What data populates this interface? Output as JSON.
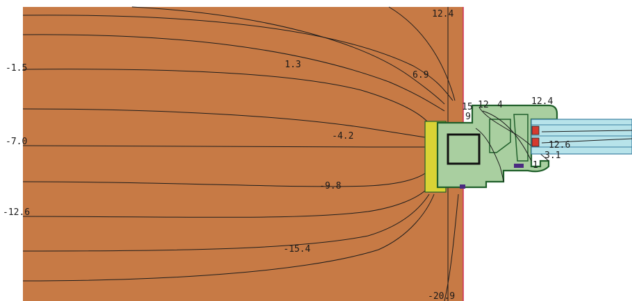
{
  "diagram": {
    "colors": {
      "wall": "#c77a45",
      "wall_edge": "#8a4d22",
      "isotherm": "#1c1c1c",
      "frame": "#a9cfa0",
      "frame_edge": "#1f5f2a",
      "insulation": "#d9d335",
      "glazing": "#b7e3ea",
      "glazing_edge": "#3a7fa0",
      "seal": "#d43a2f",
      "interior_edge": "#d0305a"
    },
    "isotherm_labels": [
      {
        "id": "iso-1",
        "text": "12.4"
      },
      {
        "id": "iso-2",
        "text": "-1.5"
      },
      {
        "id": "iso-3",
        "text": "1.3"
      },
      {
        "id": "iso-4",
        "text": "6.9"
      },
      {
        "id": "iso-5",
        "text": "15"
      },
      {
        "id": "iso-6",
        "text": "9"
      },
      {
        "id": "iso-7",
        "text": "12"
      },
      {
        "id": "iso-8",
        "text": "4"
      },
      {
        "id": "iso-9",
        "text": "12.4"
      },
      {
        "id": "iso-10",
        "text": "-7.0"
      },
      {
        "id": "iso-11",
        "text": "-4.2"
      },
      {
        "id": "iso-12",
        "text": "12.6"
      },
      {
        "id": "iso-13",
        "text": "3.1"
      },
      {
        "id": "iso-14",
        "text": "1"
      },
      {
        "id": "iso-15",
        "text": "-9.8"
      },
      {
        "id": "iso-16",
        "text": "-12.6"
      },
      {
        "id": "iso-17",
        "text": "-15.4"
      },
      {
        "id": "iso-18",
        "text": "-20.9"
      }
    ]
  }
}
